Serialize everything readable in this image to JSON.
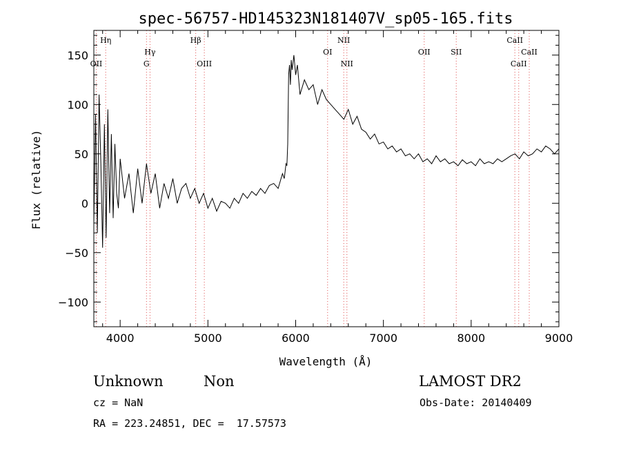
{
  "chart_data": {
    "type": "line",
    "title": "spec-56757-HD145323N181407V_sp05-165.fits",
    "xlabel": "Wavelength (Å)",
    "ylabel": "Flux (relative)",
    "xlim": [
      3700,
      9000
    ],
    "ylim": [
      -125,
      175
    ],
    "xticks": [
      4000,
      5000,
      6000,
      7000,
      8000,
      9000
    ],
    "yticks": [
      -100,
      -50,
      0,
      50,
      100,
      150
    ],
    "ytick_labels": [
      "−100",
      "−50",
      "0",
      "50",
      "100",
      "150"
    ],
    "grid": false,
    "series": [
      {
        "line_color": "#000000",
        "x": [
          3700,
          3720,
          3740,
          3760,
          3780,
          3800,
          3820,
          3840,
          3860,
          3880,
          3900,
          3920,
          3940,
          3960,
          3980,
          4000,
          4050,
          4100,
          4150,
          4200,
          4250,
          4300,
          4350,
          4400,
          4450,
          4500,
          4550,
          4600,
          4650,
          4700,
          4750,
          4800,
          4850,
          4900,
          4950,
          5000,
          5050,
          5100,
          5150,
          5200,
          5250,
          5300,
          5350,
          5400,
          5450,
          5500,
          5550,
          5600,
          5650,
          5700,
          5750,
          5800,
          5850,
          5870,
          5890,
          5900,
          5910,
          5920,
          5930,
          5940,
          5950,
          5960,
          5980,
          6000,
          6020,
          6050,
          6100,
          6150,
          6200,
          6250,
          6300,
          6350,
          6400,
          6450,
          6500,
          6550,
          6600,
          6650,
          6700,
          6750,
          6800,
          6850,
          6900,
          6950,
          7000,
          7050,
          7100,
          7150,
          7200,
          7250,
          7300,
          7350,
          7400,
          7450,
          7500,
          7550,
          7600,
          7650,
          7700,
          7750,
          7800,
          7850,
          7900,
          7950,
          8000,
          8050,
          8100,
          8150,
          8200,
          8250,
          8300,
          8350,
          8400,
          8450,
          8500,
          8550,
          8600,
          8650,
          8700,
          8750,
          8800,
          8850,
          8900,
          8950,
          9000
        ],
        "y": [
          -20,
          90,
          -30,
          110,
          40,
          -45,
          80,
          -35,
          95,
          -10,
          70,
          -15,
          60,
          10,
          -5,
          45,
          5,
          30,
          -10,
          35,
          0,
          40,
          10,
          30,
          -5,
          20,
          5,
          25,
          0,
          15,
          20,
          5,
          15,
          0,
          10,
          -5,
          5,
          -8,
          2,
          0,
          -5,
          5,
          0,
          10,
          5,
          12,
          8,
          15,
          10,
          18,
          20,
          15,
          30,
          25,
          40,
          38,
          60,
          130,
          140,
          120,
          145,
          135,
          150,
          130,
          140,
          110,
          125,
          115,
          120,
          100,
          115,
          105,
          100,
          95,
          90,
          85,
          95,
          80,
          88,
          75,
          72,
          65,
          70,
          60,
          62,
          55,
          58,
          52,
          55,
          48,
          50,
          45,
          50,
          42,
          45,
          40,
          48,
          42,
          45,
          40,
          42,
          38,
          44,
          40,
          42,
          38,
          45,
          40,
          42,
          40,
          45,
          42,
          45,
          48,
          50,
          45,
          52,
          48,
          50,
          55,
          52,
          58,
          55,
          50,
          55
        ]
      }
    ],
    "lines": [
      {
        "label": "Hη",
        "x": 3835,
        "row": 0
      },
      {
        "label": "OII",
        "x": 3727,
        "row": 2
      },
      {
        "label": "Hγ",
        "x": 4340,
        "row": 1
      },
      {
        "label": "G",
        "x": 4300,
        "row": 2
      },
      {
        "label": "Hβ",
        "x": 4861,
        "row": 0
      },
      {
        "label": "OIII",
        "x": 4959,
        "row": 2
      },
      {
        "label": "NII",
        "x": 6548,
        "row": 0
      },
      {
        "label": "OI",
        "x": 6364,
        "row": 1
      },
      {
        "label": "NII",
        "x": 6584,
        "row": 2
      },
      {
        "label": "OII",
        "x": 7465,
        "row": 1
      },
      {
        "label": "SII",
        "x": 7830,
        "row": 1
      },
      {
        "label": "CaII",
        "x": 8498,
        "row": 0
      },
      {
        "label": "CaII",
        "x": 8662,
        "row": 1
      },
      {
        "label": "CaII",
        "x": 8542,
        "row": 2
      }
    ],
    "line_marker_color": "#e05050"
  },
  "info": {
    "class_name": "Unknown",
    "subclass": "Non",
    "survey": "LAMOST DR2",
    "redshift": "cz = NaN",
    "obs_date": "Obs-Date: 20140409",
    "coords": "RA = 223.24851, DEC =  17.57573"
  }
}
